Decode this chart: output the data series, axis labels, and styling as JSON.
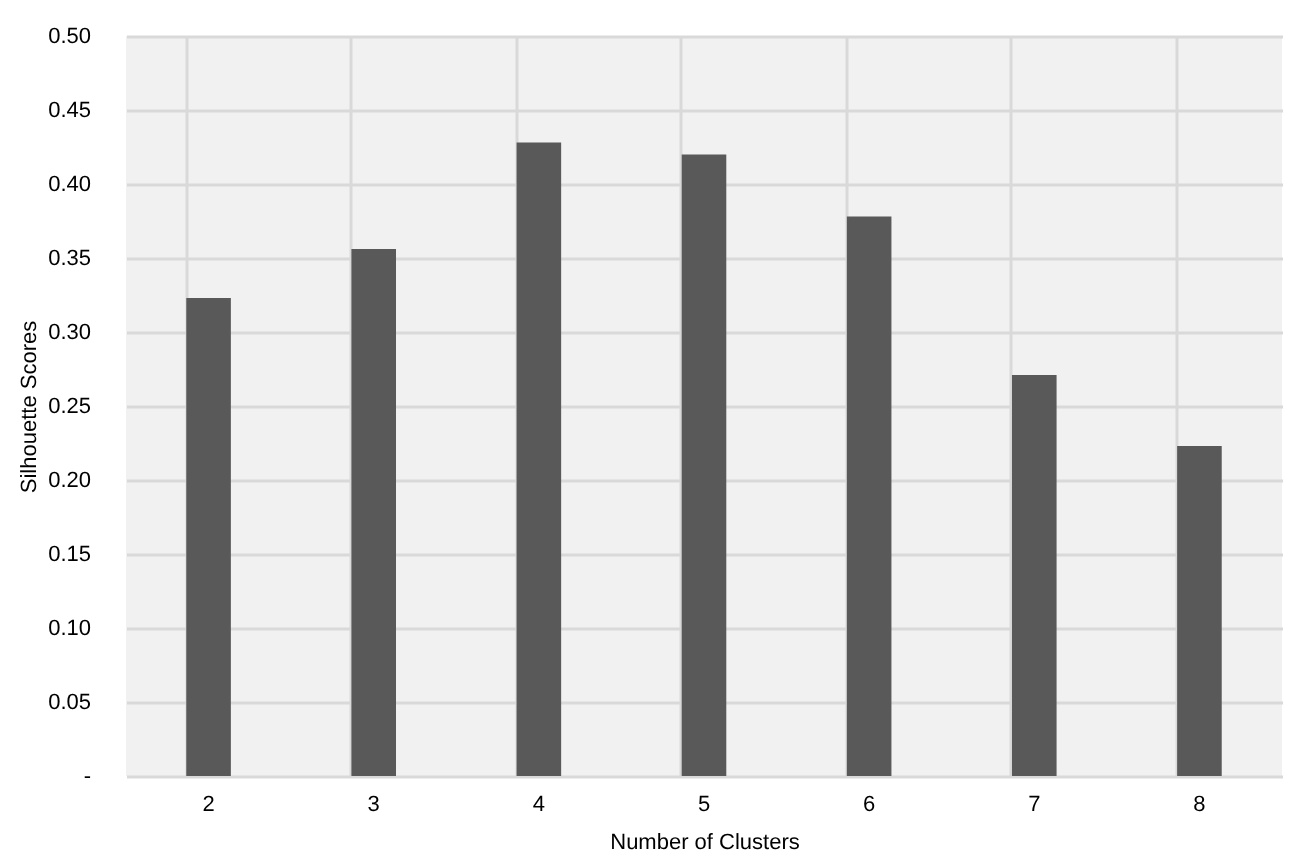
{
  "chart_data": {
    "type": "bar",
    "xlabel": "Number of Clusters",
    "ylabel": "Silhouette Scores",
    "categories": [
      "2",
      "3",
      "4",
      "5",
      "6",
      "7",
      "8"
    ],
    "values": [
      0.323,
      0.356,
      0.428,
      0.42,
      0.378,
      0.271,
      0.223
    ],
    "color": "#595959",
    "ylim": [
      0,
      0.5
    ],
    "yticks": [
      {
        "value": 0,
        "label": "-"
      },
      {
        "value": 0.05,
        "label": "0.05"
      },
      {
        "value": 0.1,
        "label": "0.10"
      },
      {
        "value": 0.15,
        "label": "0.15"
      },
      {
        "value": 0.2,
        "label": "0.20"
      },
      {
        "value": 0.25,
        "label": "0.25"
      },
      {
        "value": 0.3,
        "label": "0.30"
      },
      {
        "value": 0.35,
        "label": "0.35"
      },
      {
        "value": 0.4,
        "label": "0.40"
      },
      {
        "value": 0.45,
        "label": "0.45"
      },
      {
        "value": 0.5,
        "label": "0.50"
      }
    ],
    "grid": true
  }
}
